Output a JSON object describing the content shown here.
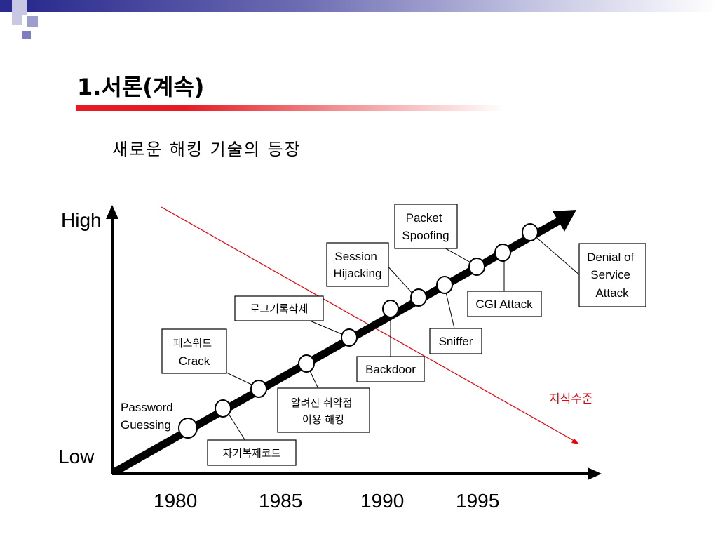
{
  "slide": {
    "title": "1.서론(계속)",
    "subtitle": "새로운 해킹 기술의 등장"
  },
  "diagram": {
    "y_axis": {
      "high": "High",
      "low": "Low"
    },
    "years": [
      "1980",
      "1985",
      "1990",
      "1995"
    ],
    "knowledge_label": "지식수준",
    "events": [
      {
        "lines": [
          "Password",
          "Guessing"
        ]
      },
      {
        "lines": [
          "자기복제코드"
        ]
      },
      {
        "lines": [
          "패스워드",
          "Crack"
        ]
      },
      {
        "lines": [
          "알려진 취약점",
          "이용 해킹"
        ]
      },
      {
        "lines": [
          "로그기록삭제"
        ]
      },
      {
        "lines": [
          "Backdoor"
        ]
      },
      {
        "lines": [
          "Session",
          "Hijacking"
        ]
      },
      {
        "lines": [
          "Sniffer"
        ]
      },
      {
        "lines": [
          "Packet",
          "Spoofing"
        ]
      },
      {
        "lines": [
          "CGI Attack"
        ]
      },
      {
        "lines": [
          "Denial of",
          "Service",
          "Attack"
        ]
      }
    ]
  },
  "colors": {
    "accent_red": "#e51a22",
    "band_blue": "#2b2b8f",
    "knowledge_line": "#e8000a"
  }
}
